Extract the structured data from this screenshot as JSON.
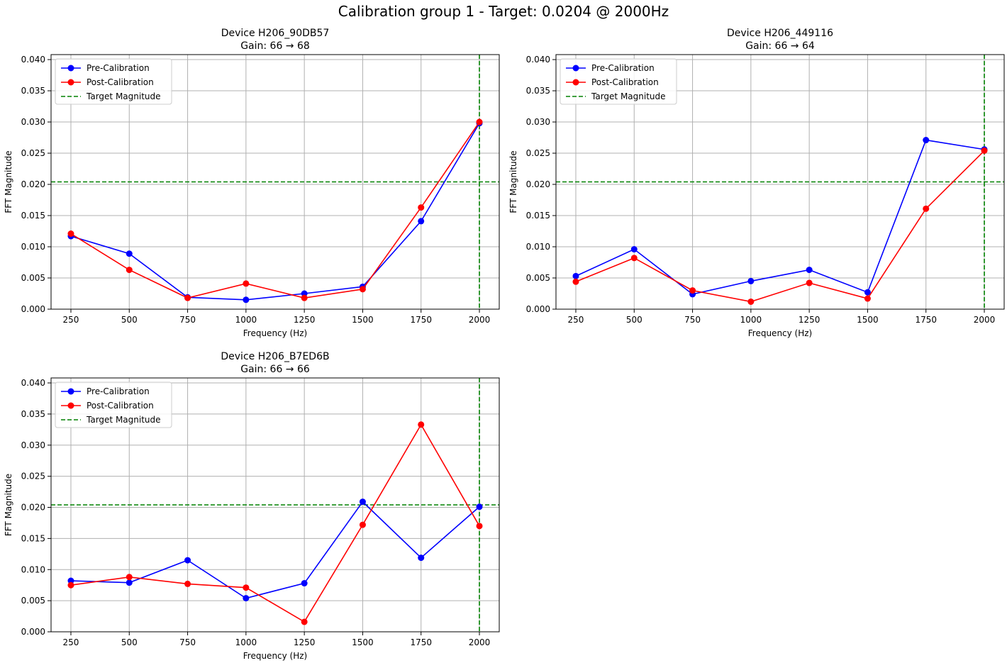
{
  "figure_title": "Calibration group 1 - Target: 0.0204 @ 2000Hz",
  "colors": {
    "pre": "#0000ff",
    "post": "#ff0000",
    "target": "#008000",
    "grid": "#b0b0b0"
  },
  "chart_data": [
    {
      "type": "line",
      "title": "Device H206_90DB57",
      "subtitle": "Gain: 66 → 68",
      "xlabel": "Frequency (Hz)",
      "ylabel": "FFT Magnitude",
      "x": [
        250,
        500,
        750,
        1000,
        1250,
        1500,
        1750,
        2000
      ],
      "x_ticks": [
        "250",
        "500",
        "750",
        "1000",
        "1250",
        "1500",
        "1750",
        "2000"
      ],
      "y_ticks": [
        "0.000",
        "0.005",
        "0.010",
        "0.015",
        "0.020",
        "0.025",
        "0.030",
        "0.035",
        "0.040"
      ],
      "xlim": [
        165,
        2085
      ],
      "ylim": [
        0,
        0.0408
      ],
      "series": [
        {
          "name": "Pre-Calibration",
          "color": "#0000ff",
          "values": [
            0.0117,
            0.0089,
            0.0019,
            0.0015,
            0.0025,
            0.0036,
            0.0141,
            0.0298
          ]
        },
        {
          "name": "Post-Calibration",
          "color": "#ff0000",
          "values": [
            0.0121,
            0.0063,
            0.0018,
            0.0041,
            0.0018,
            0.0032,
            0.0163,
            0.03
          ]
        }
      ],
      "target": {
        "name": "Target Magnitude",
        "y": 0.0204,
        "x": 2000
      },
      "legend": "top-left",
      "grid": true
    },
    {
      "type": "line",
      "title": "Device H206_449116",
      "subtitle": "Gain: 66 → 64",
      "xlabel": "Frequency (Hz)",
      "ylabel": "FFT Magnitude",
      "x": [
        250,
        500,
        750,
        1000,
        1250,
        1500,
        1750,
        2000
      ],
      "x_ticks": [
        "250",
        "500",
        "750",
        "1000",
        "1250",
        "1500",
        "1750",
        "2000"
      ],
      "y_ticks": [
        "0.000",
        "0.005",
        "0.010",
        "0.015",
        "0.020",
        "0.025",
        "0.030",
        "0.035",
        "0.040"
      ],
      "xlim": [
        165,
        2085
      ],
      "ylim": [
        0,
        0.0408
      ],
      "series": [
        {
          "name": "Pre-Calibration",
          "color": "#0000ff",
          "values": [
            0.0053,
            0.0096,
            0.0024,
            0.0045,
            0.0063,
            0.0027,
            0.0271,
            0.0256
          ]
        },
        {
          "name": "Post-Calibration",
          "color": "#ff0000",
          "values": [
            0.0044,
            0.0082,
            0.003,
            0.0012,
            0.0042,
            0.0017,
            0.0161,
            0.0254
          ]
        }
      ],
      "target": {
        "name": "Target Magnitude",
        "y": 0.0204,
        "x": 2000
      },
      "legend": "top-left",
      "grid": true
    },
    {
      "type": "line",
      "title": "Device H206_B7ED6B",
      "subtitle": "Gain: 66 → 66",
      "xlabel": "Frequency (Hz)",
      "ylabel": "FFT Magnitude",
      "x": [
        250,
        500,
        750,
        1000,
        1250,
        1500,
        1750,
        2000
      ],
      "x_ticks": [
        "250",
        "500",
        "750",
        "1000",
        "1250",
        "1500",
        "1750",
        "2000"
      ],
      "y_ticks": [
        "0.000",
        "0.005",
        "0.010",
        "0.015",
        "0.020",
        "0.025",
        "0.030",
        "0.035",
        "0.040"
      ],
      "xlim": [
        165,
        2085
      ],
      "ylim": [
        0,
        0.0408
      ],
      "series": [
        {
          "name": "Pre-Calibration",
          "color": "#0000ff",
          "values": [
            0.0082,
            0.0079,
            0.0115,
            0.0054,
            0.0078,
            0.0209,
            0.0119,
            0.0201
          ]
        },
        {
          "name": "Post-Calibration",
          "color": "#ff0000",
          "values": [
            0.0075,
            0.0088,
            0.0077,
            0.0071,
            0.0016,
            0.0172,
            0.0333,
            0.017
          ]
        }
      ],
      "target": {
        "name": "Target Magnitude",
        "y": 0.0204,
        "x": 2000
      },
      "legend": "top-left",
      "grid": true
    }
  ]
}
